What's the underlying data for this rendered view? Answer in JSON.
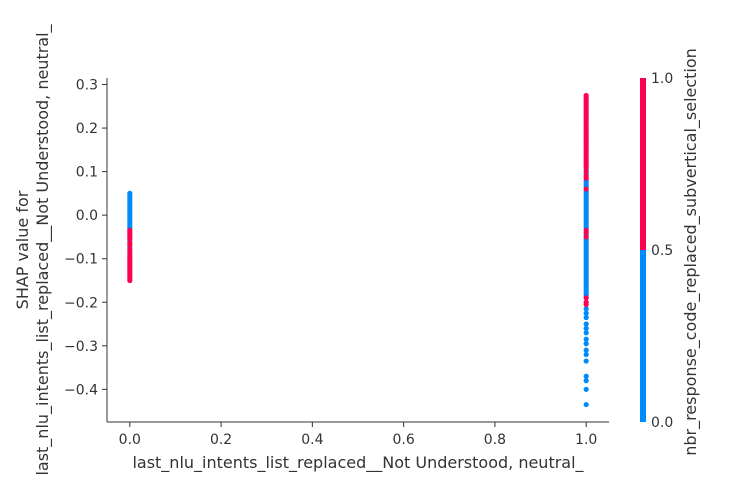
{
  "chart_data": {
    "type": "scatter",
    "xlabel": "last_nlu_intents_list_replaced__Not Understood, neutral_",
    "ylabel_lines": [
      "SHAP value for",
      "last_nlu_intents_list_replaced__Not Understood, neutral_"
    ],
    "xlim": [
      -0.05,
      1.05
    ],
    "ylim": [
      -0.475,
      0.315
    ],
    "x_ticks": [
      0.0,
      0.2,
      0.4,
      0.6,
      0.8,
      1.0
    ],
    "x_tick_labels": [
      "0.0",
      "0.2",
      "0.4",
      "0.6",
      "0.8",
      "1.0"
    ],
    "y_ticks": [
      0.3,
      0.2,
      0.1,
      0.0,
      -0.1,
      -0.2,
      -0.3,
      -0.4
    ],
    "y_tick_labels": [
      "0.3",
      "0.2",
      "0.1",
      "0.0",
      "−0.1",
      "−0.2",
      "−0.3",
      "−0.4"
    ],
    "colorbar": {
      "label": "nbr_response_code_replaced_subvertical_selection",
      "tick_labels": [
        "1.0",
        "0.5",
        "0.0"
      ],
      "low_color": "#008bfb",
      "high_color": "#ff0051"
    },
    "points": {
      "x0_blue": [
        0.05,
        0.045,
        0.04,
        0.035,
        0.03,
        0.025,
        0.02,
        0.015,
        0.01,
        0.005,
        0.0,
        -0.005,
        -0.01,
        -0.015,
        -0.02,
        -0.025,
        -0.03,
        -0.035,
        -0.06,
        -0.075
      ],
      "x0_red": [
        -0.035,
        -0.04,
        -0.045,
        -0.05,
        -0.055,
        -0.065,
        -0.07,
        -0.08,
        -0.085,
        -0.09,
        -0.095,
        -0.1,
        -0.105,
        -0.11,
        -0.115,
        -0.12,
        -0.125,
        -0.13,
        -0.135,
        -0.14,
        -0.145,
        -0.15
      ],
      "x1_red": [
        0.275,
        0.27,
        0.265,
        0.26,
        0.255,
        0.25,
        0.245,
        0.24,
        0.235,
        0.23,
        0.225,
        0.22,
        0.215,
        0.21,
        0.205,
        0.2,
        0.195,
        0.19,
        0.185,
        0.18,
        0.175,
        0.17,
        0.165,
        0.16,
        0.155,
        0.15,
        0.145,
        0.14,
        0.135,
        0.13,
        0.125,
        0.12,
        0.115,
        0.11,
        0.1,
        0.09,
        0.085,
        0.06,
        -0.035,
        -0.04,
        -0.05,
        -0.19,
        -0.2,
        -0.205
      ],
      "x1_blue": [
        0.105,
        0.095,
        0.08,
        0.075,
        0.07,
        0.065,
        0.055,
        0.05,
        0.045,
        0.04,
        0.035,
        0.03,
        0.025,
        0.02,
        0.015,
        0.01,
        0.005,
        0.0,
        -0.005,
        -0.01,
        -0.015,
        -0.02,
        -0.025,
        -0.03,
        -0.045,
        -0.055,
        -0.06,
        -0.065,
        -0.07,
        -0.075,
        -0.08,
        -0.085,
        -0.09,
        -0.095,
        -0.1,
        -0.105,
        -0.11,
        -0.115,
        -0.12,
        -0.125,
        -0.13,
        -0.135,
        -0.14,
        -0.145,
        -0.15,
        -0.155,
        -0.16,
        -0.165,
        -0.17,
        -0.175,
        -0.18,
        -0.185,
        -0.215,
        -0.225,
        -0.235,
        -0.25,
        -0.26,
        -0.27,
        -0.285,
        -0.295,
        -0.31,
        -0.32,
        -0.335,
        -0.37,
        -0.38,
        -0.4,
        -0.435
      ]
    }
  }
}
